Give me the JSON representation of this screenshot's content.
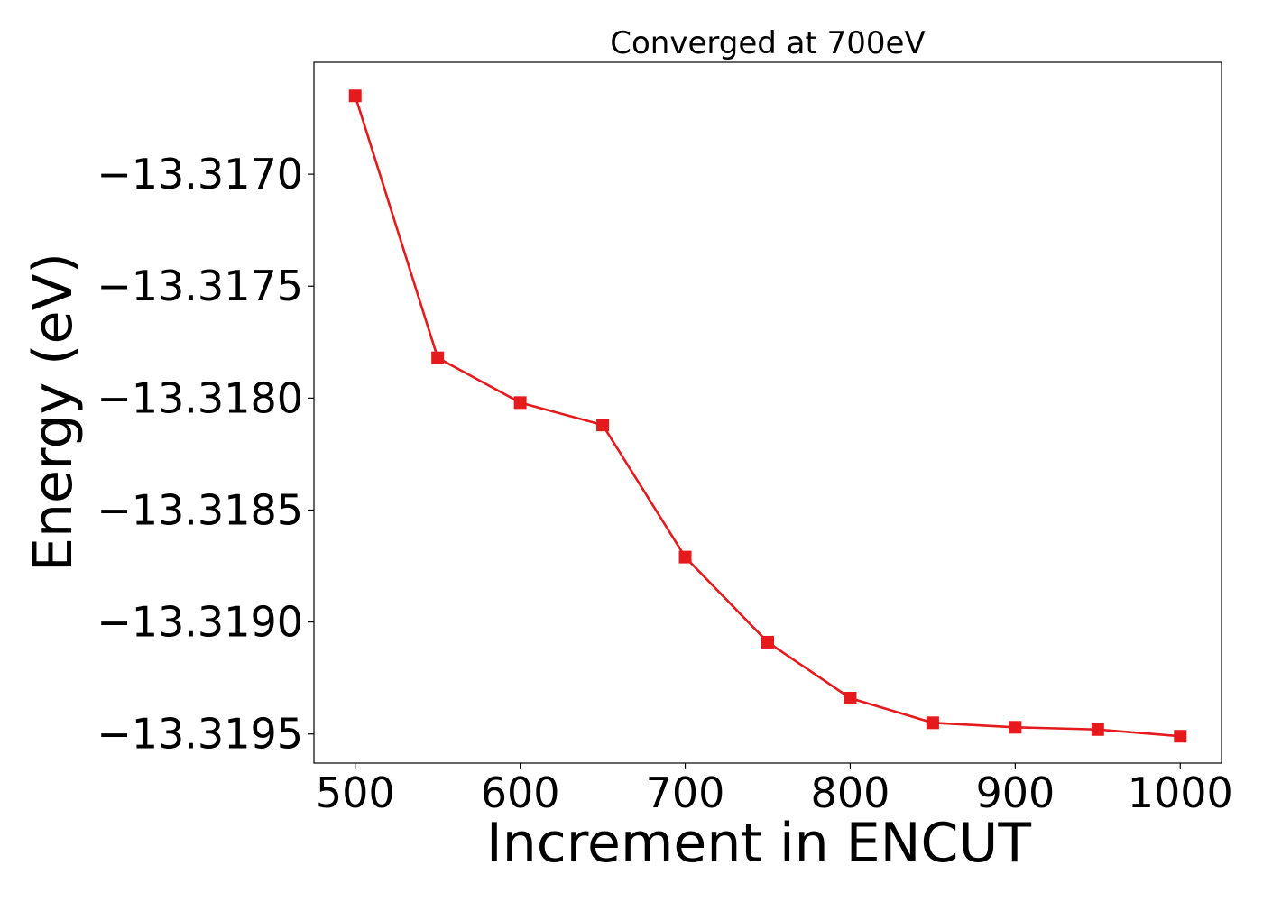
{
  "chart_data": {
    "type": "line",
    "title": "Converged at 700eV",
    "xlabel": "Increment in ENCUT",
    "ylabel": "Energy (eV)",
    "x": [
      500,
      550,
      600,
      650,
      700,
      750,
      800,
      850,
      900,
      950,
      1000
    ],
    "series": [
      {
        "values": [
          -13.31665,
          -13.31782,
          -13.31802,
          -13.31812,
          -13.31871,
          -13.31909,
          -13.31934,
          -13.31945,
          -13.31947,
          -13.31948,
          -13.31951
        ],
        "color": "#e41a1c",
        "marker": "square"
      }
    ],
    "xlim": [
      475,
      1025
    ],
    "ylim": [
      -13.31963,
      -13.3165
    ],
    "xticks": [
      500,
      600,
      700,
      800,
      900,
      1000
    ],
    "xtick_labels": [
      "500",
      "600",
      "700",
      "800",
      "900",
      "1000"
    ],
    "yticks": [
      -13.317,
      -13.3175,
      -13.318,
      -13.3185,
      -13.319,
      -13.3195
    ],
    "ytick_labels": [
      "−13.3170",
      "−13.3175",
      "−13.3180",
      "−13.3185",
      "−13.3190",
      "−13.3195"
    ],
    "grid": false,
    "legend": "none"
  }
}
